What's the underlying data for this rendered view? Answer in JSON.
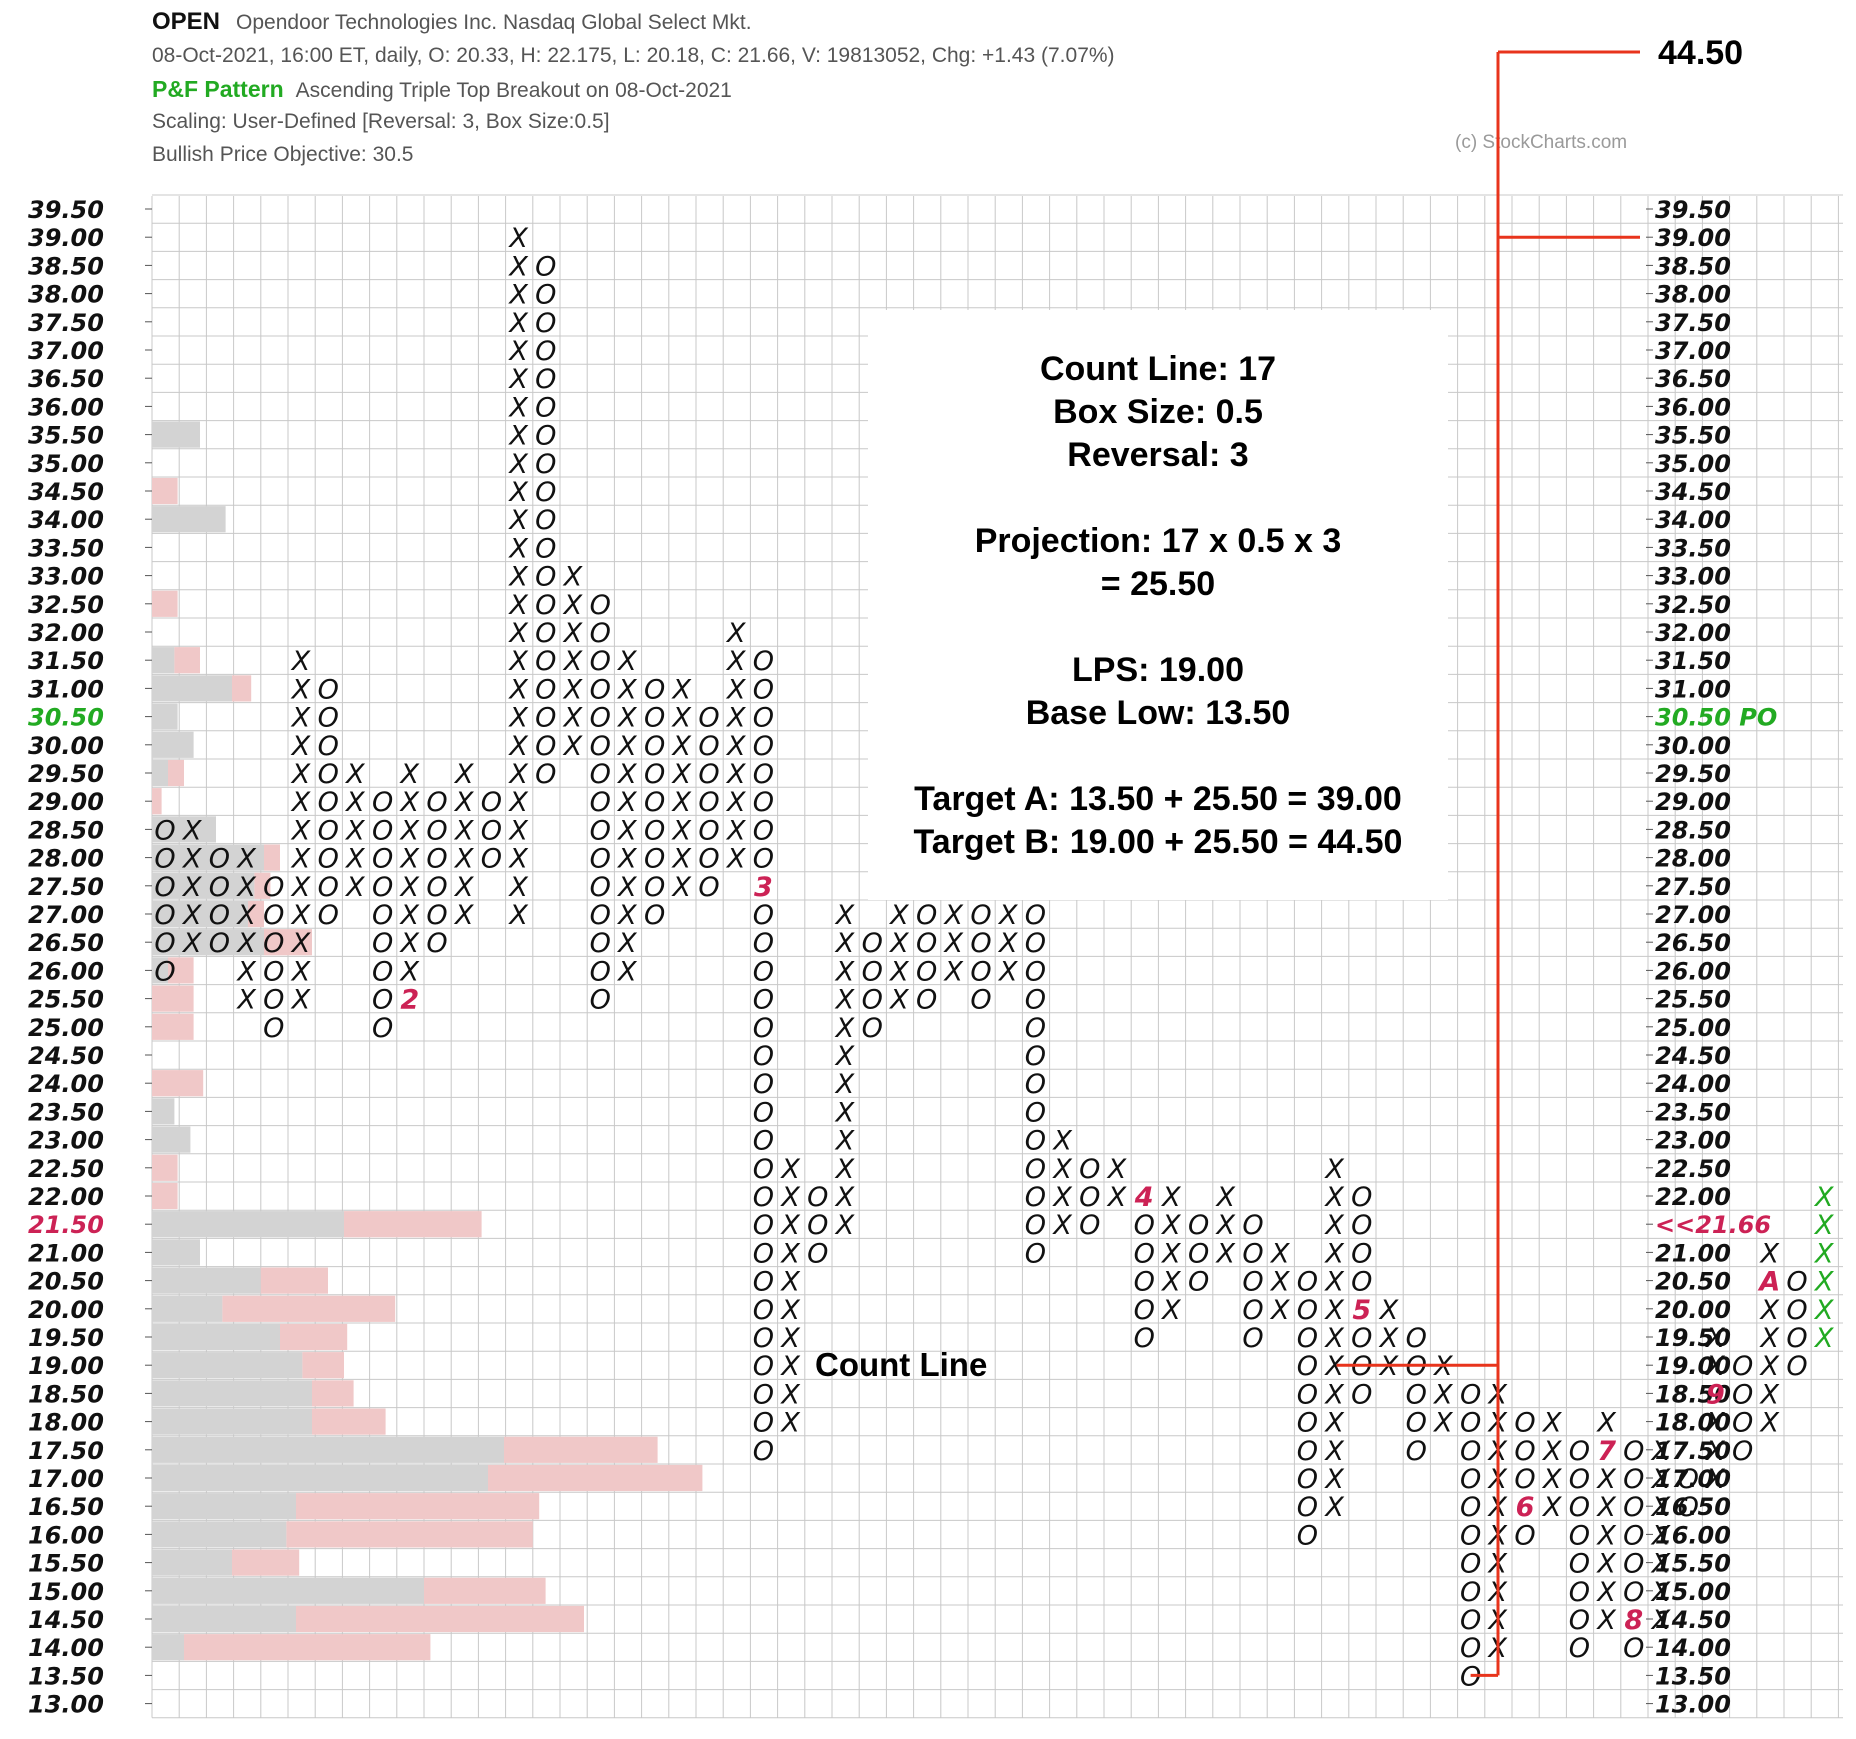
{
  "header": {
    "symbol": "OPEN",
    "company": "Opendoor Technologies Inc.  Nasdaq Global Select Mkt.",
    "quote": "08-Oct-2021, 16:00 ET, daily, O: 20.33, H: 22.175, L: 20.18, C: 21.66, V: 19813052, Chg: +1.43 (7.07%)",
    "pf_label": "P&F Pattern",
    "pf_pattern": "Ascending Triple Top Breakout on 08-Oct-2021",
    "scaling": "Scaling: User-Defined [Reversal: 3, Box Size:0.5]",
    "objective": "Bullish Price Objective: 30.5",
    "credit": "(c) StockCharts.com"
  },
  "annotation": {
    "target_top_label": "44.50",
    "count_line_label": "Count Line",
    "lines": [
      "Count Line: 17",
      "Box Size: 0.5",
      "Reversal: 3",
      "",
      "Projection: 17 x 0.5 x 3",
      "= 25.50",
      "",
      "LPS: 19.00",
      "Base Low: 13.50",
      "",
      "Target A: 13.50 + 25.50 = 39.00",
      "Target B: 19.00 + 25.50 = 44.50"
    ]
  },
  "colors": {
    "grid": "#c8c8c8",
    "mark": "#111111",
    "latest_mark": "#22aa22",
    "month_number": "#cc2255",
    "volume_up": "#d3d3d3",
    "volume_down": "#f0c8c8",
    "annotation_line": "#e8341c",
    "price_objective": "#22aa22",
    "last_price": "#cc2255"
  },
  "chart_data": {
    "type": "point-and-figure",
    "symbol": "OPEN",
    "box_size": 0.5,
    "reversal": 3,
    "ylim": [
      13.0,
      39.5
    ],
    "tick_step": 0.5,
    "price_objective": {
      "value": 30.5,
      "label": "30.50 PO"
    },
    "last_price": {
      "value": 21.5,
      "label": "<<21.66"
    },
    "left_highlight": {
      "value": 30.5,
      "color": "#22aa22",
      "label": "30.50"
    },
    "left_highlight_2": {
      "value": 21.5,
      "color": "#cc2255",
      "label": "21.50"
    },
    "columns": [
      {
        "type": "O",
        "from": 28.5,
        "to": 26.0,
        "labels": {}
      },
      {
        "type": "X",
        "from": 26.5,
        "to": 28.5,
        "labels": {}
      },
      {
        "type": "O",
        "from": 28.0,
        "to": 26.5,
        "labels": {}
      },
      {
        "type": "X",
        "from": 25.5,
        "to": 28.0,
        "labels": {}
      },
      {
        "type": "O",
        "from": 27.5,
        "to": 25.0,
        "labels": {}
      },
      {
        "type": "X",
        "from": 25.5,
        "to": 31.5,
        "labels": {}
      },
      {
        "type": "O",
        "from": 31.0,
        "to": 27.0,
        "labels": {}
      },
      {
        "type": "X",
        "from": 27.5,
        "to": 29.5,
        "labels": {}
      },
      {
        "type": "O",
        "from": 29.0,
        "to": 25.0,
        "labels": {}
      },
      {
        "type": "X",
        "from": 25.5,
        "to": 29.5,
        "labels": {
          "25.5": "2"
        }
      },
      {
        "type": "O",
        "from": 29.0,
        "to": 26.5,
        "labels": {}
      },
      {
        "type": "X",
        "from": 27.0,
        "to": 29.5,
        "labels": {}
      },
      {
        "type": "O",
        "from": 29.0,
        "to": 28.0,
        "labels": {}
      },
      {
        "type": "X",
        "from": 27.0,
        "to": 39.0,
        "labels": {}
      },
      {
        "type": "O",
        "from": 38.5,
        "to": 29.5,
        "labels": {}
      },
      {
        "type": "X",
        "from": 30.0,
        "to": 33.0,
        "labels": {}
      },
      {
        "type": "O",
        "from": 32.5,
        "to": 25.5,
        "labels": {}
      },
      {
        "type": "X",
        "from": 26.0,
        "to": 31.5,
        "labels": {}
      },
      {
        "type": "O",
        "from": 31.0,
        "to": 27.0,
        "labels": {}
      },
      {
        "type": "X",
        "from": 27.5,
        "to": 31.0,
        "labels": {}
      },
      {
        "type": "O",
        "from": 30.5,
        "to": 27.5,
        "labels": {}
      },
      {
        "type": "X",
        "from": 28.0,
        "to": 32.0,
        "labels": {}
      },
      {
        "type": "O",
        "from": 31.5,
        "to": 17.5,
        "labels": {
          "27.5": "3"
        }
      },
      {
        "type": "X",
        "from": 18.0,
        "to": 22.5,
        "labels": {}
      },
      {
        "type": "O",
        "from": 22.0,
        "to": 21.0,
        "labels": {}
      },
      {
        "type": "X",
        "from": 21.5,
        "to": 27.0,
        "labels": {}
      },
      {
        "type": "O",
        "from": 26.5,
        "to": 25.0,
        "labels": {}
      },
      {
        "type": "X",
        "from": 25.5,
        "to": 30.0,
        "labels": {}
      },
      {
        "type": "O",
        "from": 29.5,
        "to": 25.5,
        "labels": {}
      },
      {
        "type": "X",
        "from": 26.0,
        "to": 28.5,
        "labels": {}
      },
      {
        "type": "O",
        "from": 28.0,
        "to": 25.5,
        "labels": {}
      },
      {
        "type": "X",
        "from": 26.0,
        "to": 28.0,
        "labels": {}
      },
      {
        "type": "O",
        "from": 27.5,
        "to": 21.0,
        "labels": {}
      },
      {
        "type": "X",
        "from": 21.5,
        "to": 23.0,
        "labels": {}
      },
      {
        "type": "O",
        "from": 22.5,
        "to": 21.5,
        "labels": {}
      },
      {
        "type": "X",
        "from": 22.0,
        "to": 22.5,
        "labels": {}
      },
      {
        "type": "O",
        "from": 22.0,
        "to": 19.5,
        "labels": {
          "22.0": "4"
        }
      },
      {
        "type": "X",
        "from": 20.0,
        "to": 22.0,
        "labels": {}
      },
      {
        "type": "O",
        "from": 21.5,
        "to": 20.5,
        "labels": {}
      },
      {
        "type": "X",
        "from": 21.0,
        "to": 22.0,
        "labels": {}
      },
      {
        "type": "O",
        "from": 21.5,
        "to": 19.5,
        "labels": {}
      },
      {
        "type": "X",
        "from": 20.0,
        "to": 21.0,
        "labels": {}
      },
      {
        "type": "O",
        "from": 20.5,
        "to": 16.0,
        "labels": {}
      },
      {
        "type": "X",
        "from": 16.5,
        "to": 22.5,
        "labels": {}
      },
      {
        "type": "O",
        "from": 22.0,
        "to": 18.5,
        "labels": {
          "20.0": "5"
        }
      },
      {
        "type": "X",
        "from": 19.0,
        "to": 20.0,
        "labels": {}
      },
      {
        "type": "O",
        "from": 19.5,
        "to": 17.5,
        "labels": {}
      },
      {
        "type": "X",
        "from": 18.0,
        "to": 19.0,
        "labels": {}
      },
      {
        "type": "O",
        "from": 18.5,
        "to": 13.5,
        "labels": {}
      },
      {
        "type": "X",
        "from": 14.0,
        "to": 18.5,
        "labels": {}
      },
      {
        "type": "O",
        "from": 18.0,
        "to": 16.0,
        "labels": {
          "16.5": "6"
        }
      },
      {
        "type": "X",
        "from": 16.5,
        "to": 18.0,
        "labels": {}
      },
      {
        "type": "O",
        "from": 17.5,
        "to": 14.0,
        "labels": {}
      },
      {
        "type": "X",
        "from": 14.5,
        "to": 18.0,
        "labels": {
          "17.5": "7"
        }
      },
      {
        "type": "O",
        "from": 17.5,
        "to": 14.0,
        "labels": {
          "14.5": "8"
        }
      },
      {
        "type": "X",
        "from": 14.5,
        "to": 17.5,
        "labels": {}
      },
      {
        "type": "O",
        "from": 17.0,
        "to": 16.5,
        "labels": {}
      },
      {
        "type": "X",
        "from": 17.0,
        "to": 19.5,
        "labels": {
          "18.5": "9"
        }
      },
      {
        "type": "O",
        "from": 19.0,
        "to": 17.5,
        "labels": {}
      },
      {
        "type": "X",
        "from": 18.0,
        "to": 21.0,
        "labels": {
          "20.5": "A"
        }
      },
      {
        "type": "O",
        "from": 20.5,
        "to": 19.0,
        "labels": {}
      },
      {
        "type": "X",
        "from": 19.5,
        "to": 22.0,
        "labels": {},
        "latest": true
      }
    ],
    "volume_profile": [
      {
        "price": 35.5,
        "up": 1.5,
        "down": 0
      },
      {
        "price": 34.5,
        "up": 0,
        "down": 0.8
      },
      {
        "price": 34.0,
        "up": 2.3,
        "down": 0
      },
      {
        "price": 32.5,
        "up": 0,
        "down": 0.8
      },
      {
        "price": 31.5,
        "up": 0.7,
        "down": 0.8
      },
      {
        "price": 31.0,
        "up": 2.5,
        "down": 0.6
      },
      {
        "price": 30.5,
        "up": 0.8,
        "down": 0
      },
      {
        "price": 30.0,
        "up": 1.3,
        "down": 0
      },
      {
        "price": 29.5,
        "up": 0.5,
        "down": 0.5
      },
      {
        "price": 29.0,
        "up": 0,
        "down": 0.3
      },
      {
        "price": 28.5,
        "up": 2.0,
        "down": 0
      },
      {
        "price": 28.0,
        "up": 3.5,
        "down": 0.5
      },
      {
        "price": 27.5,
        "up": 3.2,
        "down": 0.5
      },
      {
        "price": 27.0,
        "up": 3.0,
        "down": 0.5
      },
      {
        "price": 26.5,
        "up": 3.5,
        "down": 1.5
      },
      {
        "price": 26.0,
        "up": 0.5,
        "down": 0.8
      },
      {
        "price": 25.5,
        "up": 0,
        "down": 1.3
      },
      {
        "price": 25.0,
        "up": 0,
        "down": 1.3
      },
      {
        "price": 24.0,
        "up": 0,
        "down": 1.6
      },
      {
        "price": 23.5,
        "up": 0.7,
        "down": 0
      },
      {
        "price": 23.0,
        "up": 1.2,
        "down": 0
      },
      {
        "price": 22.5,
        "up": 0,
        "down": 0.8
      },
      {
        "price": 22.0,
        "up": 0,
        "down": 0.8
      },
      {
        "price": 21.5,
        "up": 6.0,
        "down": 4.3
      },
      {
        "price": 21.0,
        "up": 1.5,
        "down": 0
      },
      {
        "price": 20.5,
        "up": 3.4,
        "down": 2.1
      },
      {
        "price": 20.0,
        "up": 2.2,
        "down": 5.4
      },
      {
        "price": 19.5,
        "up": 4.0,
        "down": 2.1
      },
      {
        "price": 19.0,
        "up": 4.7,
        "down": 1.3
      },
      {
        "price": 18.5,
        "up": 5.0,
        "down": 1.3
      },
      {
        "price": 18.0,
        "up": 5.0,
        "down": 2.3
      },
      {
        "price": 17.5,
        "up": 11.0,
        "down": 4.8
      },
      {
        "price": 17.0,
        "up": 10.5,
        "down": 6.7
      },
      {
        "price": 16.5,
        "up": 4.5,
        "down": 7.6
      },
      {
        "price": 16.0,
        "up": 4.2,
        "down": 7.7
      },
      {
        "price": 15.5,
        "up": 2.5,
        "down": 2.1
      },
      {
        "price": 15.0,
        "up": 8.5,
        "down": 3.8
      },
      {
        "price": 14.5,
        "up": 4.5,
        "down": 9.0
      },
      {
        "price": 14.0,
        "up": 1.0,
        "down": 7.7
      }
    ],
    "targets": [
      {
        "name": "Target A",
        "value": 39.0,
        "label": ""
      },
      {
        "name": "Target B",
        "value": 44.5,
        "label": "44.50"
      }
    ],
    "count_line": {
      "price": 19.0,
      "from_column": 43,
      "to_column": 60
    },
    "base_low": {
      "price": 13.5,
      "column": 48
    }
  }
}
